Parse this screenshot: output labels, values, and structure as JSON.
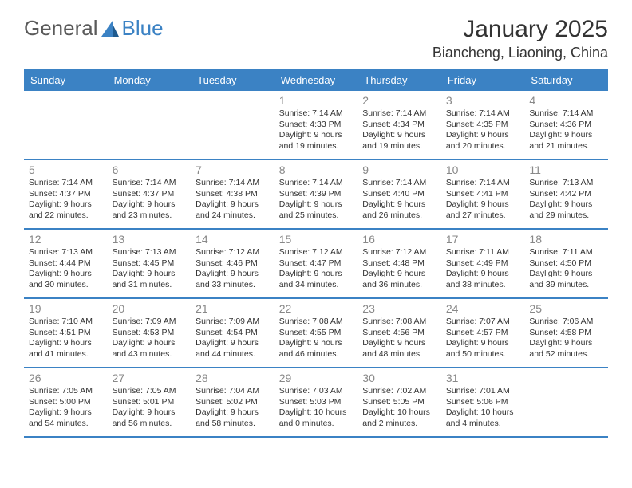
{
  "logo": {
    "word1": "General",
    "word2": "Blue"
  },
  "title": "January 2025",
  "location": "Biancheng, Liaoning, China",
  "weekdays": [
    "Sunday",
    "Monday",
    "Tuesday",
    "Wednesday",
    "Thursday",
    "Friday",
    "Saturday"
  ],
  "colors": {
    "header_bar": "#3b82c4",
    "header_text": "#ffffff",
    "day_num": "#888888",
    "body_text": "#333333",
    "divider": "#3b82c4",
    "background": "#ffffff"
  },
  "typography": {
    "month_title_fontsize": 30,
    "location_fontsize": 18,
    "weekday_fontsize": 13,
    "daynum_fontsize": 14,
    "dayinfo_fontsize": 10.5,
    "font_family": "Arial"
  },
  "layout": {
    "columns": 7,
    "rows": 5,
    "first_day_column": 3
  },
  "days": [
    {
      "n": "1",
      "sunrise": "Sunrise: 7:14 AM",
      "sunset": "Sunset: 4:33 PM",
      "daylight1": "Daylight: 9 hours",
      "daylight2": "and 19 minutes."
    },
    {
      "n": "2",
      "sunrise": "Sunrise: 7:14 AM",
      "sunset": "Sunset: 4:34 PM",
      "daylight1": "Daylight: 9 hours",
      "daylight2": "and 19 minutes."
    },
    {
      "n": "3",
      "sunrise": "Sunrise: 7:14 AM",
      "sunset": "Sunset: 4:35 PM",
      "daylight1": "Daylight: 9 hours",
      "daylight2": "and 20 minutes."
    },
    {
      "n": "4",
      "sunrise": "Sunrise: 7:14 AM",
      "sunset": "Sunset: 4:36 PM",
      "daylight1": "Daylight: 9 hours",
      "daylight2": "and 21 minutes."
    },
    {
      "n": "5",
      "sunrise": "Sunrise: 7:14 AM",
      "sunset": "Sunset: 4:37 PM",
      "daylight1": "Daylight: 9 hours",
      "daylight2": "and 22 minutes."
    },
    {
      "n": "6",
      "sunrise": "Sunrise: 7:14 AM",
      "sunset": "Sunset: 4:37 PM",
      "daylight1": "Daylight: 9 hours",
      "daylight2": "and 23 minutes."
    },
    {
      "n": "7",
      "sunrise": "Sunrise: 7:14 AM",
      "sunset": "Sunset: 4:38 PM",
      "daylight1": "Daylight: 9 hours",
      "daylight2": "and 24 minutes."
    },
    {
      "n": "8",
      "sunrise": "Sunrise: 7:14 AM",
      "sunset": "Sunset: 4:39 PM",
      "daylight1": "Daylight: 9 hours",
      "daylight2": "and 25 minutes."
    },
    {
      "n": "9",
      "sunrise": "Sunrise: 7:14 AM",
      "sunset": "Sunset: 4:40 PM",
      "daylight1": "Daylight: 9 hours",
      "daylight2": "and 26 minutes."
    },
    {
      "n": "10",
      "sunrise": "Sunrise: 7:14 AM",
      "sunset": "Sunset: 4:41 PM",
      "daylight1": "Daylight: 9 hours",
      "daylight2": "and 27 minutes."
    },
    {
      "n": "11",
      "sunrise": "Sunrise: 7:13 AM",
      "sunset": "Sunset: 4:42 PM",
      "daylight1": "Daylight: 9 hours",
      "daylight2": "and 29 minutes."
    },
    {
      "n": "12",
      "sunrise": "Sunrise: 7:13 AM",
      "sunset": "Sunset: 4:44 PM",
      "daylight1": "Daylight: 9 hours",
      "daylight2": "and 30 minutes."
    },
    {
      "n": "13",
      "sunrise": "Sunrise: 7:13 AM",
      "sunset": "Sunset: 4:45 PM",
      "daylight1": "Daylight: 9 hours",
      "daylight2": "and 31 minutes."
    },
    {
      "n": "14",
      "sunrise": "Sunrise: 7:12 AM",
      "sunset": "Sunset: 4:46 PM",
      "daylight1": "Daylight: 9 hours",
      "daylight2": "and 33 minutes."
    },
    {
      "n": "15",
      "sunrise": "Sunrise: 7:12 AM",
      "sunset": "Sunset: 4:47 PM",
      "daylight1": "Daylight: 9 hours",
      "daylight2": "and 34 minutes."
    },
    {
      "n": "16",
      "sunrise": "Sunrise: 7:12 AM",
      "sunset": "Sunset: 4:48 PM",
      "daylight1": "Daylight: 9 hours",
      "daylight2": "and 36 minutes."
    },
    {
      "n": "17",
      "sunrise": "Sunrise: 7:11 AM",
      "sunset": "Sunset: 4:49 PM",
      "daylight1": "Daylight: 9 hours",
      "daylight2": "and 38 minutes."
    },
    {
      "n": "18",
      "sunrise": "Sunrise: 7:11 AM",
      "sunset": "Sunset: 4:50 PM",
      "daylight1": "Daylight: 9 hours",
      "daylight2": "and 39 minutes."
    },
    {
      "n": "19",
      "sunrise": "Sunrise: 7:10 AM",
      "sunset": "Sunset: 4:51 PM",
      "daylight1": "Daylight: 9 hours",
      "daylight2": "and 41 minutes."
    },
    {
      "n": "20",
      "sunrise": "Sunrise: 7:09 AM",
      "sunset": "Sunset: 4:53 PM",
      "daylight1": "Daylight: 9 hours",
      "daylight2": "and 43 minutes."
    },
    {
      "n": "21",
      "sunrise": "Sunrise: 7:09 AM",
      "sunset": "Sunset: 4:54 PM",
      "daylight1": "Daylight: 9 hours",
      "daylight2": "and 44 minutes."
    },
    {
      "n": "22",
      "sunrise": "Sunrise: 7:08 AM",
      "sunset": "Sunset: 4:55 PM",
      "daylight1": "Daylight: 9 hours",
      "daylight2": "and 46 minutes."
    },
    {
      "n": "23",
      "sunrise": "Sunrise: 7:08 AM",
      "sunset": "Sunset: 4:56 PM",
      "daylight1": "Daylight: 9 hours",
      "daylight2": "and 48 minutes."
    },
    {
      "n": "24",
      "sunrise": "Sunrise: 7:07 AM",
      "sunset": "Sunset: 4:57 PM",
      "daylight1": "Daylight: 9 hours",
      "daylight2": "and 50 minutes."
    },
    {
      "n": "25",
      "sunrise": "Sunrise: 7:06 AM",
      "sunset": "Sunset: 4:58 PM",
      "daylight1": "Daylight: 9 hours",
      "daylight2": "and 52 minutes."
    },
    {
      "n": "26",
      "sunrise": "Sunrise: 7:05 AM",
      "sunset": "Sunset: 5:00 PM",
      "daylight1": "Daylight: 9 hours",
      "daylight2": "and 54 minutes."
    },
    {
      "n": "27",
      "sunrise": "Sunrise: 7:05 AM",
      "sunset": "Sunset: 5:01 PM",
      "daylight1": "Daylight: 9 hours",
      "daylight2": "and 56 minutes."
    },
    {
      "n": "28",
      "sunrise": "Sunrise: 7:04 AM",
      "sunset": "Sunset: 5:02 PM",
      "daylight1": "Daylight: 9 hours",
      "daylight2": "and 58 minutes."
    },
    {
      "n": "29",
      "sunrise": "Sunrise: 7:03 AM",
      "sunset": "Sunset: 5:03 PM",
      "daylight1": "Daylight: 10 hours",
      "daylight2": "and 0 minutes."
    },
    {
      "n": "30",
      "sunrise": "Sunrise: 7:02 AM",
      "sunset": "Sunset: 5:05 PM",
      "daylight1": "Daylight: 10 hours",
      "daylight2": "and 2 minutes."
    },
    {
      "n": "31",
      "sunrise": "Sunrise: 7:01 AM",
      "sunset": "Sunset: 5:06 PM",
      "daylight1": "Daylight: 10 hours",
      "daylight2": "and 4 minutes."
    }
  ]
}
